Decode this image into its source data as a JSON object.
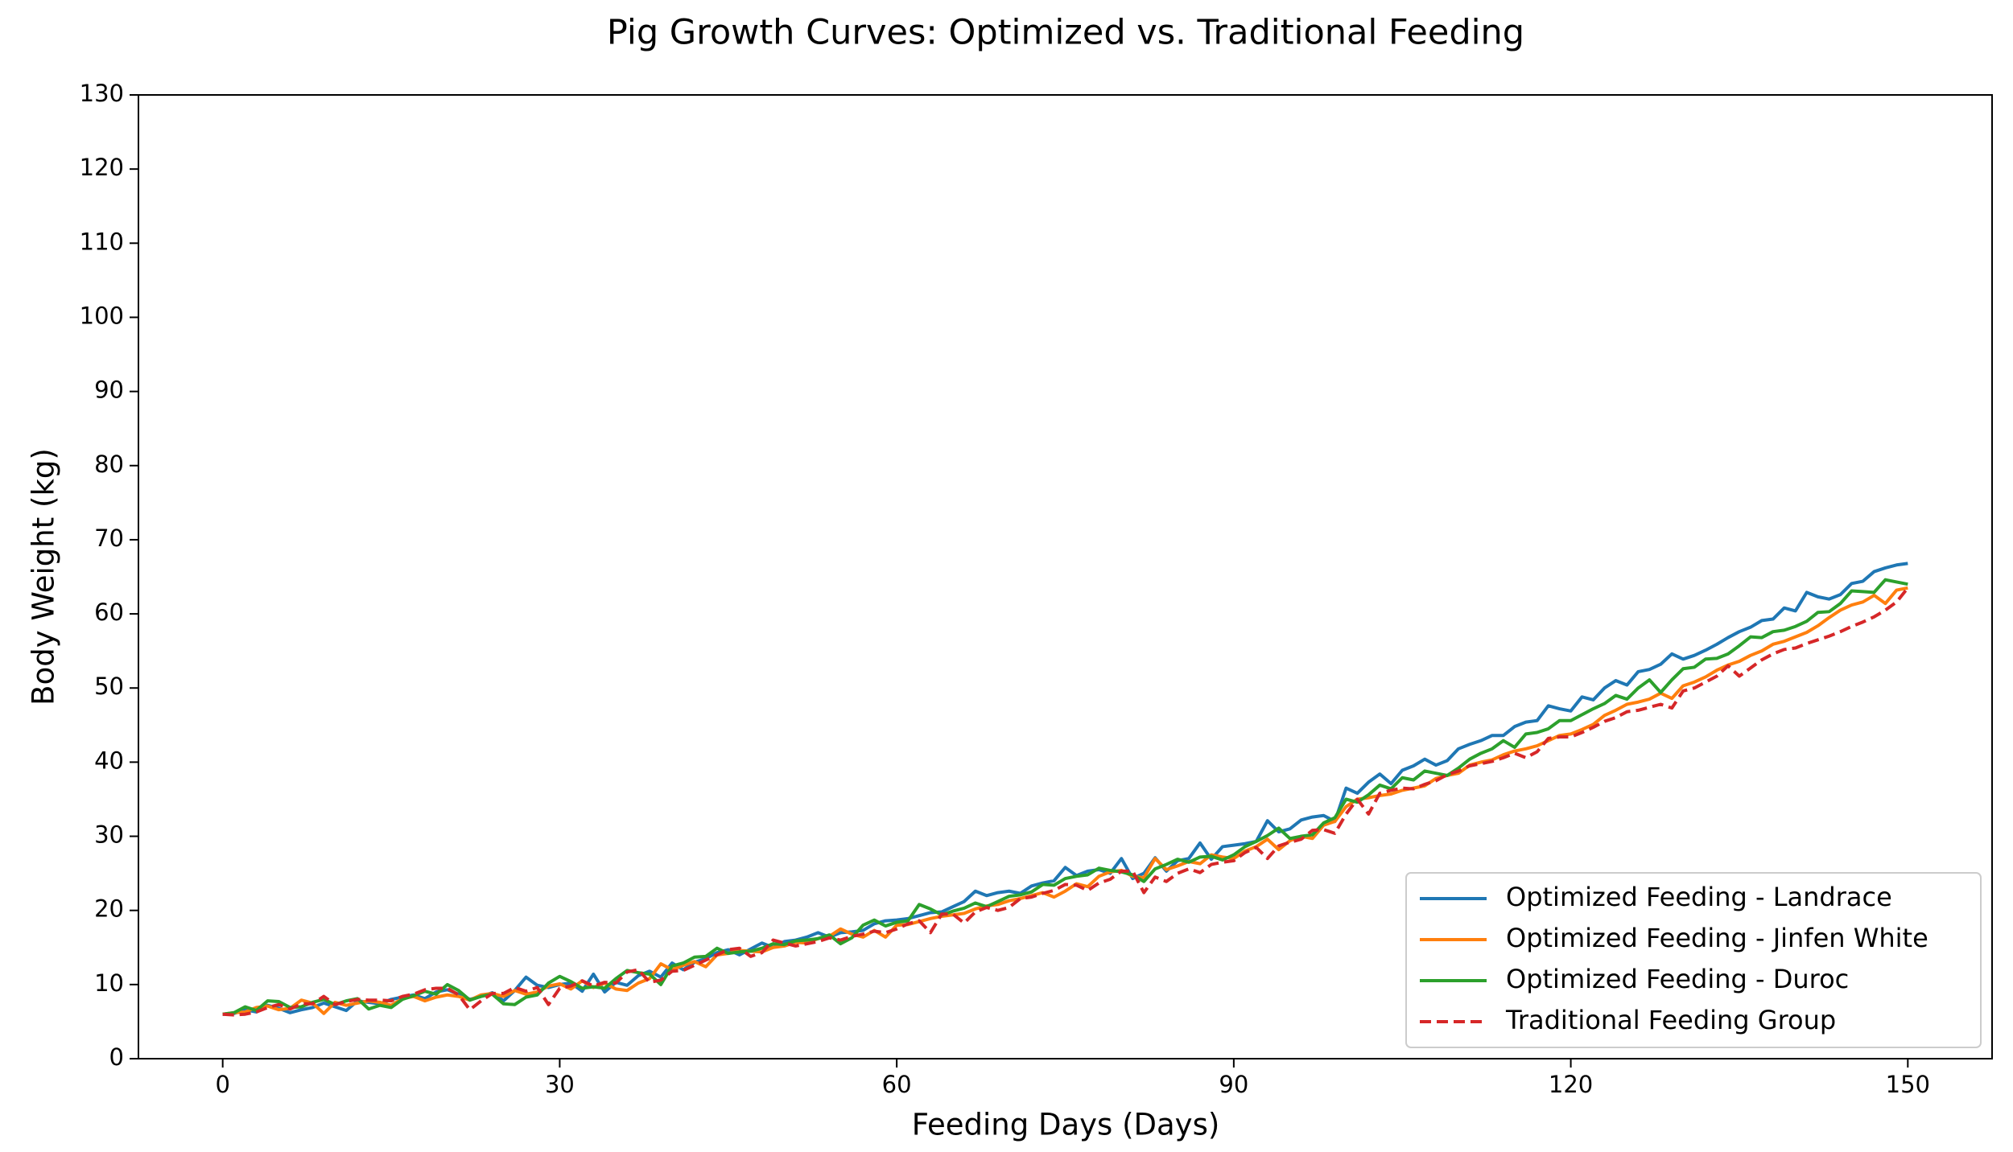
{
  "chart_data": {
    "type": "line",
    "title": "Pig Growth Curves: Optimized vs. Traditional Feeding",
    "x_label": "Feeding Days (Days)",
    "y_label": "Body Weight (kg)",
    "x": [
      0,
      1,
      2,
      3,
      4,
      5,
      6,
      7,
      8,
      9,
      10,
      11,
      12,
      13,
      14,
      15,
      16,
      17,
      18,
      19,
      20,
      21,
      22,
      23,
      24,
      25,
      26,
      27,
      28,
      29,
      30,
      31,
      32,
      33,
      34,
      35,
      36,
      37,
      38,
      39,
      40,
      41,
      42,
      43,
      44,
      45,
      46,
      47,
      48,
      49,
      50,
      51,
      52,
      53,
      54,
      55,
      56,
      57,
      58,
      59,
      60,
      61,
      62,
      63,
      64,
      65,
      66,
      67,
      68,
      69,
      70,
      71,
      72,
      73,
      74,
      75,
      76,
      77,
      78,
      79,
      80,
      81,
      82,
      83,
      84,
      85,
      86,
      87,
      88,
      89,
      90,
      91,
      92,
      93,
      94,
      95,
      96,
      97,
      98,
      99,
      100,
      101,
      102,
      103,
      104,
      105,
      106,
      107,
      108,
      109,
      110,
      111,
      112,
      113,
      114,
      115,
      116,
      117,
      118,
      119,
      120,
      121,
      122,
      123,
      124,
      125,
      126,
      127,
      128,
      129,
      130,
      131,
      132,
      133,
      134,
      135,
      136,
      137,
      138,
      139,
      140,
      141,
      142,
      143,
      144,
      145,
      146,
      147,
      148,
      149,
      150
    ],
    "series": [
      {
        "name": "Optimized Feeding - Landrace",
        "color": "#1f77b4",
        "style": "solid",
        "values": [
          6.0,
          6.1,
          6.6,
          6.3,
          7.2,
          6.8,
          6.2,
          6.6,
          6.9,
          7.5,
          7.0,
          6.5,
          7.8,
          7.6,
          7.4,
          8.0,
          8.3,
          8.6,
          8.1,
          9.0,
          9.3,
          8.7,
          8.0,
          8.4,
          8.9,
          7.8,
          9.2,
          11.0,
          9.9,
          9.6,
          10.0,
          10.2,
          9.1,
          11.4,
          9.0,
          10.3,
          9.9,
          11.2,
          11.8,
          11.0,
          12.9,
          12.0,
          13.0,
          13.5,
          14.3,
          14.7,
          14.0,
          14.8,
          15.6,
          15.0,
          15.8,
          16.0,
          16.4,
          17.0,
          16.4,
          17.0,
          17.1,
          17.3,
          18.2,
          18.6,
          18.7,
          18.9,
          19.3,
          19.7,
          19.8,
          20.5,
          21.2,
          22.6,
          22.0,
          22.4,
          22.6,
          22.3,
          23.3,
          23.7,
          24.0,
          25.8,
          24.7,
          25.3,
          25.5,
          25.0,
          27.0,
          24.3,
          25.0,
          27.1,
          25.3,
          26.7,
          27.0,
          29.1,
          26.9,
          28.6,
          28.8,
          29.0,
          29.3,
          32.1,
          30.6,
          31.0,
          32.2,
          32.6,
          32.8,
          32.0,
          36.5,
          35.8,
          37.3,
          38.4,
          37.1,
          38.9,
          39.5,
          40.4,
          39.6,
          40.2,
          41.8,
          42.4,
          42.9,
          43.6,
          43.6,
          44.8,
          45.4,
          45.6,
          47.6,
          47.2,
          46.9,
          48.8,
          48.4,
          50.0,
          51.0,
          50.4,
          52.2,
          52.5,
          53.2,
          54.6,
          53.9,
          54.4,
          55.1,
          55.9,
          56.8,
          57.6,
          58.2,
          59.1,
          59.3,
          60.8,
          60.4,
          62.9,
          62.3,
          62.0,
          62.6,
          64.1,
          64.4,
          65.7,
          66.2,
          66.6,
          66.8
        ]
      },
      {
        "name": "Optimized Feeding - Jinfen White",
        "color": "#ff7f0e",
        "style": "solid",
        "values": [
          6.0,
          6.2,
          6.3,
          6.9,
          7.1,
          6.6,
          6.8,
          7.9,
          7.5,
          6.1,
          7.6,
          7.2,
          7.5,
          7.8,
          7.6,
          7.2,
          8.1,
          8.4,
          7.8,
          8.3,
          8.6,
          8.4,
          7.9,
          8.6,
          8.8,
          8.4,
          9.2,
          8.7,
          9.0,
          9.8,
          10.1,
          9.4,
          10.5,
          9.6,
          10.2,
          9.4,
          9.2,
          10.2,
          10.8,
          12.8,
          12.0,
          12.6,
          13.1,
          12.4,
          14.0,
          14.2,
          14.6,
          14.5,
          14.4,
          15.0,
          15.2,
          15.7,
          15.6,
          16.2,
          16.5,
          17.5,
          16.8,
          16.4,
          17.3,
          16.4,
          18.0,
          18.1,
          18.5,
          18.9,
          19.2,
          19.4,
          19.6,
          20.2,
          20.6,
          20.8,
          21.3,
          21.6,
          22.0,
          22.4,
          21.8,
          22.6,
          23.6,
          23.2,
          24.6,
          25.2,
          25.4,
          24.6,
          24.4,
          27.0,
          25.5,
          26.0,
          26.6,
          26.3,
          27.5,
          27.2,
          27.0,
          28.0,
          28.6,
          29.6,
          28.2,
          29.4,
          30.0,
          29.7,
          31.5,
          32.0,
          34.0,
          35.0,
          35.2,
          35.5,
          35.7,
          36.2,
          36.5,
          36.8,
          37.8,
          38.2,
          38.5,
          39.6,
          40.0,
          40.3,
          41.0,
          41.5,
          41.8,
          42.2,
          42.9,
          43.6,
          43.8,
          44.4,
          45.1,
          46.3,
          47.0,
          47.8,
          48.1,
          48.5,
          49.3,
          48.6,
          50.3,
          50.8,
          51.5,
          52.4,
          53.1,
          53.6,
          54.4,
          55.0,
          55.9,
          56.3,
          56.9,
          57.5,
          58.4,
          59.5,
          60.5,
          61.2,
          61.6,
          62.5,
          61.4,
          63.2,
          63.5
        ]
      },
      {
        "name": "Optimized Feeding - Duroc",
        "color": "#2ca02c",
        "style": "solid",
        "values": [
          6.0,
          6.2,
          7.0,
          6.5,
          7.8,
          7.7,
          6.9,
          7.0,
          7.6,
          8.0,
          7.3,
          7.8,
          8.1,
          6.7,
          7.2,
          6.9,
          8.0,
          8.5,
          9.1,
          8.7,
          10.0,
          9.2,
          7.9,
          8.4,
          8.7,
          7.4,
          7.3,
          8.3,
          8.6,
          10.2,
          11.1,
          10.4,
          9.5,
          9.7,
          9.5,
          10.8,
          11.9,
          11.6,
          11.4,
          10.0,
          12.5,
          12.9,
          13.7,
          13.8,
          14.9,
          14.2,
          14.4,
          14.5,
          14.9,
          15.5,
          15.4,
          15.9,
          16.0,
          16.2,
          16.7,
          15.5,
          16.3,
          18.0,
          18.7,
          17.9,
          18.4,
          18.6,
          20.8,
          20.2,
          19.4,
          19.9,
          20.3,
          21.0,
          20.5,
          21.2,
          21.9,
          22.1,
          22.5,
          23.5,
          23.4,
          24.3,
          24.6,
          24.8,
          25.7,
          25.4,
          25.2,
          24.8,
          23.9,
          25.6,
          26.2,
          26.9,
          26.5,
          27.2,
          27.3,
          26.8,
          27.5,
          28.6,
          29.3,
          30.1,
          31.1,
          29.7,
          30.0,
          30.2,
          31.8,
          32.5,
          35.0,
          34.6,
          35.6,
          36.9,
          36.4,
          37.9,
          37.6,
          38.8,
          38.5,
          38.2,
          39.2,
          40.4,
          41.2,
          41.8,
          42.9,
          42.0,
          43.8,
          44.0,
          44.5,
          45.6,
          45.6,
          46.4,
          47.2,
          47.9,
          49.0,
          48.5,
          50.0,
          51.1,
          49.4,
          51.1,
          52.6,
          52.8,
          53.9,
          54.0,
          54.6,
          55.7,
          56.9,
          56.8,
          57.6,
          57.8,
          58.3,
          59.0,
          60.2,
          60.3,
          61.4,
          63.1,
          63.0,
          62.9,
          64.6,
          64.3,
          64.0
        ]
      },
      {
        "name": "Traditional Feeding Group",
        "color": "#d62728",
        "style": "dashed",
        "values": [
          6.0,
          5.9,
          6.0,
          6.3,
          6.9,
          7.3,
          6.7,
          7.4,
          7.4,
          8.4,
          7.3,
          7.7,
          8.0,
          7.9,
          7.9,
          7.8,
          8.4,
          8.7,
          9.3,
          9.5,
          9.5,
          8.6,
          6.6,
          7.8,
          8.8,
          8.8,
          9.6,
          9.1,
          9.6,
          7.3,
          9.5,
          9.8,
          10.5,
          9.8,
          10.3,
          10.2,
          11.7,
          12.0,
          10.3,
          10.6,
          11.8,
          11.9,
          12.6,
          13.3,
          14.0,
          14.7,
          14.9,
          13.8,
          14.3,
          16.0,
          15.6,
          15.2,
          15.5,
          15.8,
          16.3,
          16.0,
          16.5,
          16.8,
          17.2,
          17.0,
          17.5,
          18.2,
          18.6,
          17.0,
          19.5,
          19.5,
          18.3,
          19.8,
          20.4,
          20.0,
          20.4,
          21.6,
          21.8,
          22.3,
          22.7,
          23.5,
          23.4,
          22.7,
          23.7,
          24.2,
          25.3,
          25.3,
          22.4,
          24.5,
          23.9,
          25.0,
          25.6,
          25.1,
          26.2,
          26.5,
          26.7,
          27.8,
          28.5,
          27.0,
          28.7,
          29.2,
          29.6,
          30.8,
          30.9,
          30.4,
          33.0,
          35.0,
          33.0,
          35.8,
          36.2,
          36.5,
          36.4,
          37.0,
          37.5,
          38.3,
          38.8,
          39.5,
          39.8,
          40.1,
          40.6,
          41.2,
          40.6,
          41.4,
          43.2,
          43.4,
          43.4,
          44.0,
          44.7,
          45.5,
          46.0,
          46.8,
          47.0,
          47.4,
          47.8,
          47.3,
          49.6,
          50.0,
          50.8,
          51.6,
          53.0,
          51.6,
          52.7,
          53.8,
          54.6,
          55.2,
          55.4,
          56.0,
          56.5,
          57.0,
          57.6,
          58.3,
          58.9,
          59.6,
          60.5,
          61.6,
          63.5
        ]
      }
    ],
    "xlim": [
      -7.5,
      157.5
    ],
    "xticks": [
      0,
      30,
      60,
      90,
      120,
      150
    ],
    "ylim": [
      0,
      130
    ],
    "yticks": [
      0,
      10,
      20,
      30,
      40,
      50,
      60,
      70,
      80,
      90,
      100,
      110,
      120,
      130
    ],
    "grid": false,
    "legend": "lower right"
  }
}
